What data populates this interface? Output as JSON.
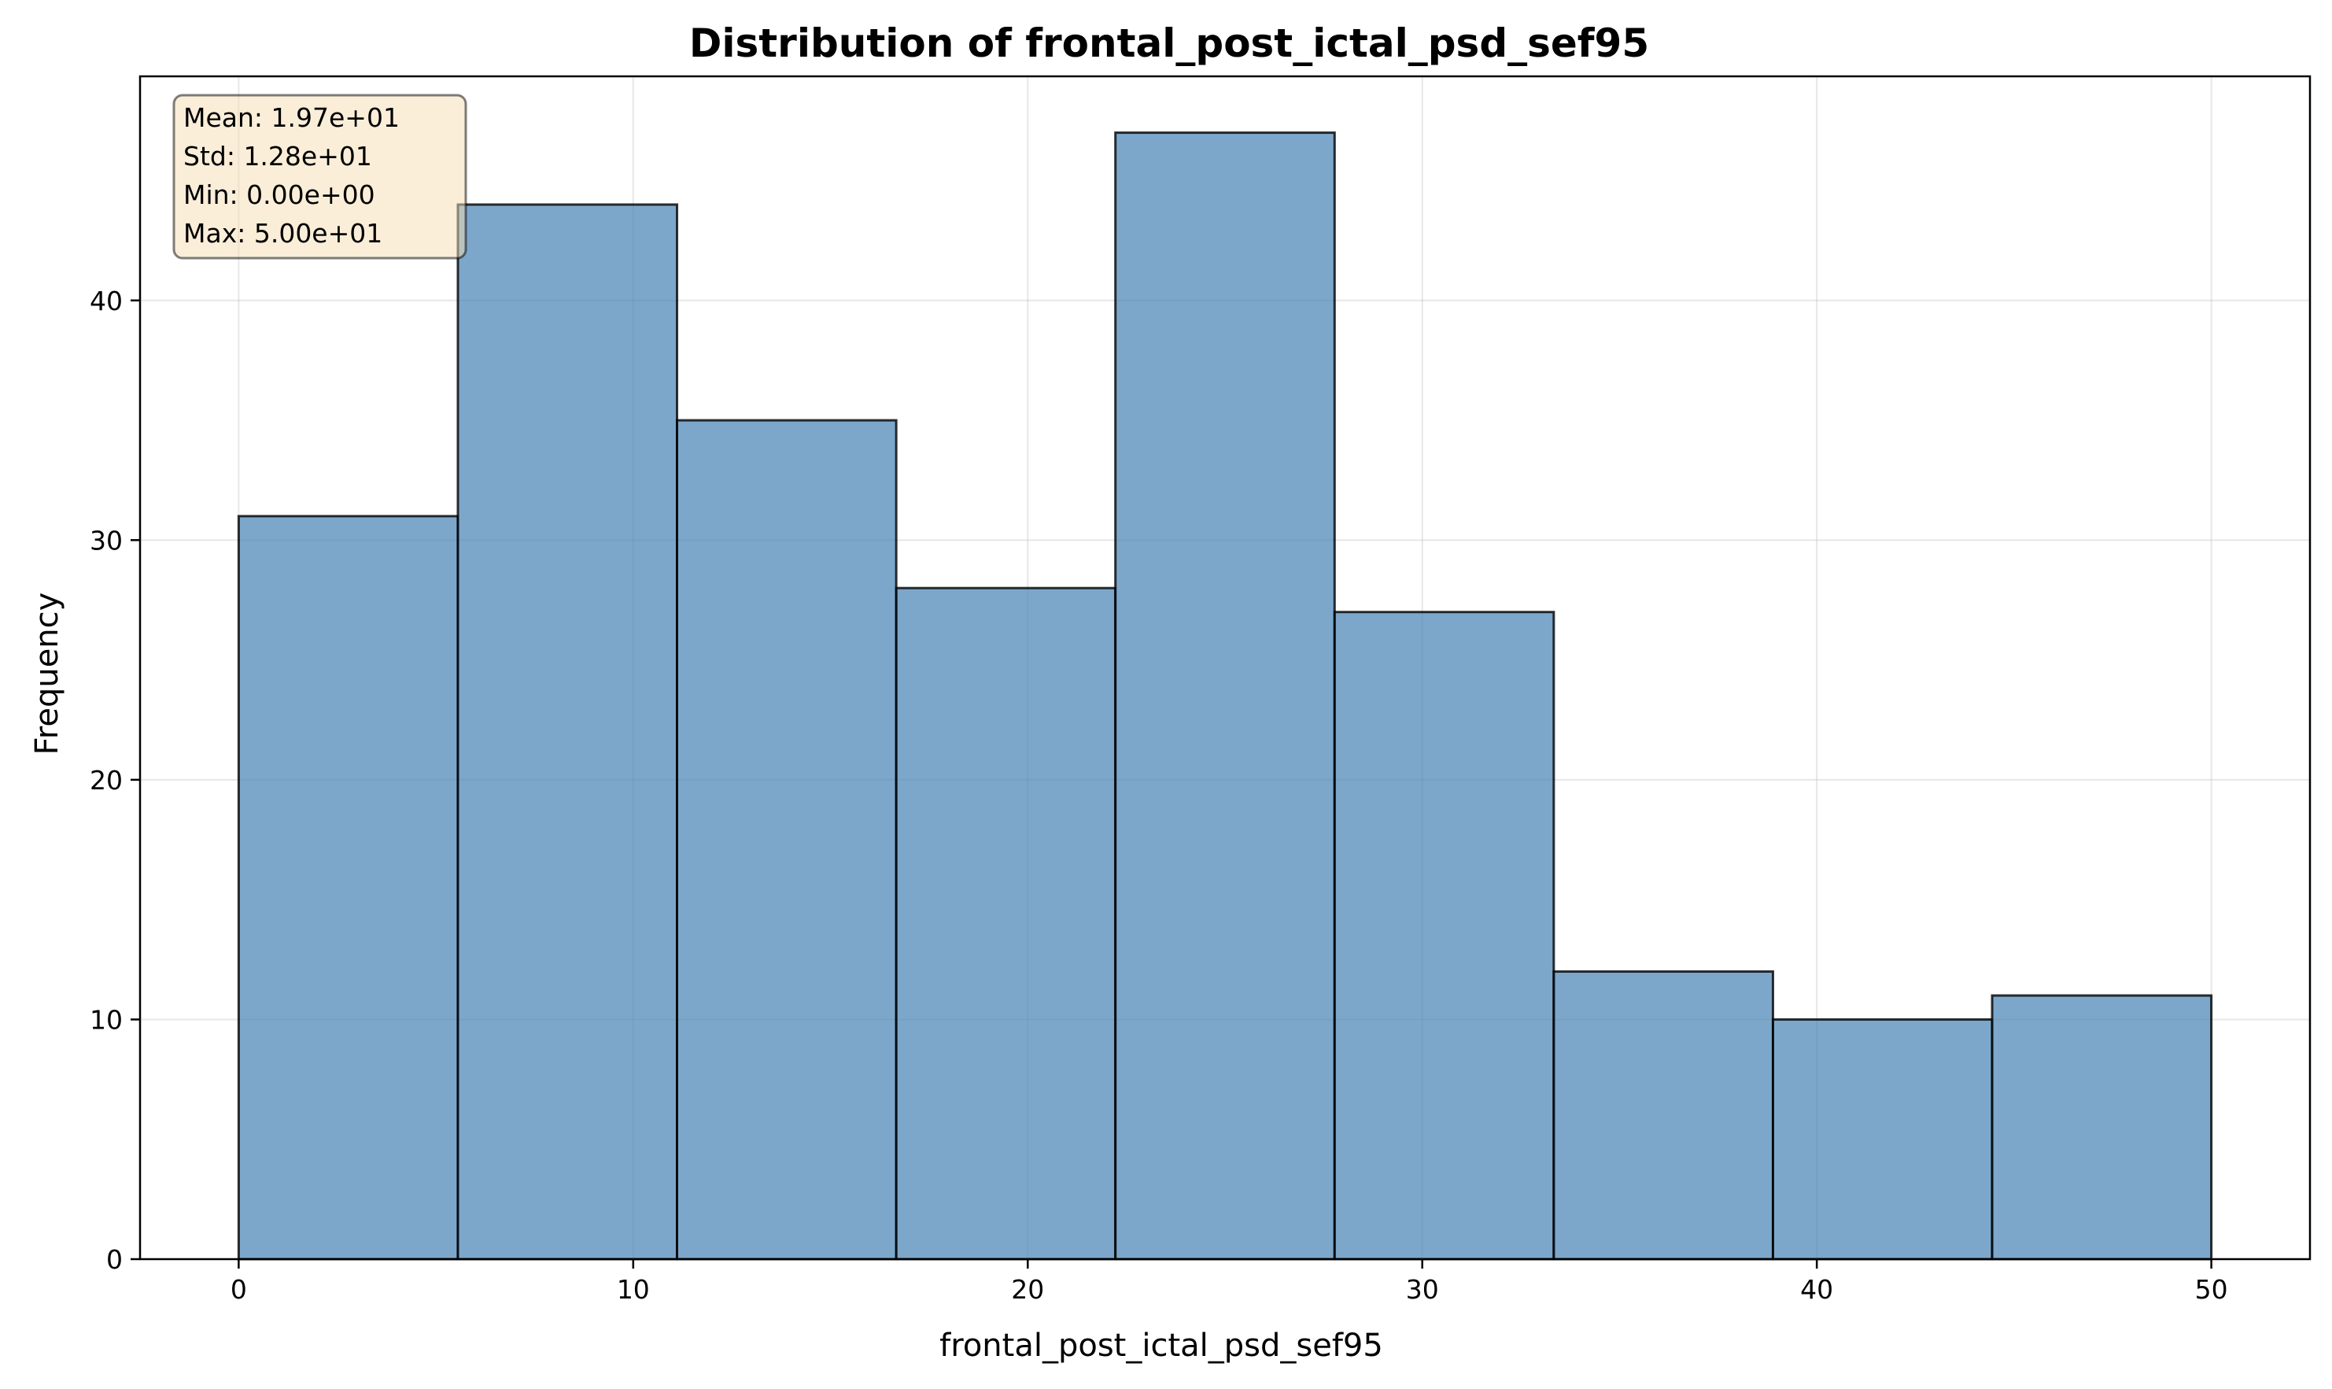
{
  "chart_data": {
    "type": "bar",
    "title": "Distribution of frontal_post_ictal_psd_sef95",
    "xlabel": "frontal_post_ictal_psd_sef95",
    "ylabel": "Frequency",
    "xlim": [
      -2.5,
      52.5
    ],
    "ylim": [
      0,
      49.35
    ],
    "xticks": [
      0,
      10,
      20,
      30,
      40,
      50
    ],
    "yticks": [
      0,
      10,
      20,
      30,
      40
    ],
    "bin_edges": [
      0,
      5.556,
      11.111,
      16.667,
      22.222,
      27.778,
      33.333,
      38.889,
      44.444,
      50
    ],
    "values": [
      31,
      44,
      35,
      28,
      47,
      27,
      12,
      10,
      11
    ],
    "grid": true,
    "bar_color": "#4682b4",
    "bar_opacity": 0.7,
    "edge_color": "#000000",
    "stats_box": {
      "lines": [
        "Mean: 1.97e+01",
        "Std: 1.28e+01",
        "Min: 0.00e+00",
        "Max: 5.00e+01"
      ],
      "position": "top-left",
      "background": "#f5deb3"
    }
  }
}
